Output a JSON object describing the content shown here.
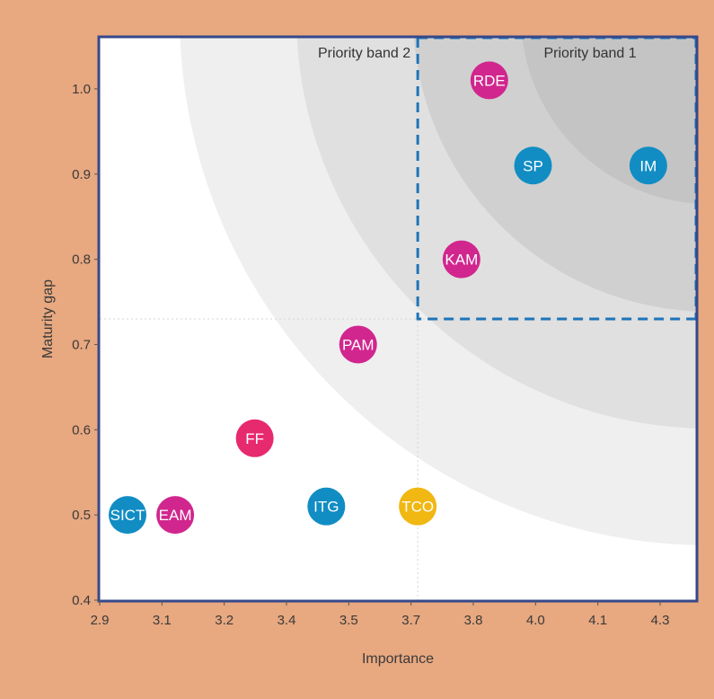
{
  "chart_data": {
    "type": "scatter",
    "xlabel": "Importance",
    "ylabel": "Maturity gap",
    "x_ticks": [
      "2.9",
      "3.1",
      "3.2",
      "3.4",
      "3.5",
      "3.7",
      "3.8",
      "4.0",
      "4.1",
      "4.3"
    ],
    "y_ticks": [
      "0.4",
      "0.5",
      "0.6",
      "0.7",
      "0.8",
      "0.9",
      "1.0"
    ],
    "xlim": [
      2.9,
      4.4
    ],
    "ylim": [
      0.4,
      1.06
    ],
    "grid": false,
    "bands": [
      {
        "name": "Priority band 1",
        "x_min": 3.7,
        "y_min": 0.73
      },
      {
        "name": "Priority band 2",
        "x_min": 3.7,
        "y_min": 0.73
      }
    ],
    "points": [
      {
        "label": "RDE",
        "x": 3.88,
        "y": 1.01,
        "color": "#d1268e"
      },
      {
        "label": "SP",
        "x": 3.99,
        "y": 0.91,
        "color": "#118dc4"
      },
      {
        "label": "IM",
        "x": 4.28,
        "y": 0.91,
        "color": "#118dc4"
      },
      {
        "label": "KAM",
        "x": 3.81,
        "y": 0.8,
        "color": "#d1268e"
      },
      {
        "label": "PAM",
        "x": 3.55,
        "y": 0.7,
        "color": "#d1268e"
      },
      {
        "label": "FF",
        "x": 3.29,
        "y": 0.59,
        "color": "#e72a6e"
      },
      {
        "label": "ITG",
        "x": 3.47,
        "y": 0.51,
        "color": "#118dc4"
      },
      {
        "label": "TCO",
        "x": 3.7,
        "y": 0.51,
        "color": "#f1b712"
      },
      {
        "label": "SICT",
        "x": 2.97,
        "y": 0.5,
        "color": "#118dc4"
      },
      {
        "label": "EAM",
        "x": 3.09,
        "y": 0.5,
        "color": "#d1268e"
      }
    ],
    "colors": {
      "background": "#e8a880",
      "plot_background": "#ffffff",
      "band_line": "#1e74b8",
      "frame": "#35488a",
      "shade_light": "#efefef",
      "shade_mid": "#e0e0e0",
      "shade_dark": "#d0d0d0",
      "shade_darkest": "#c4c4c4"
    }
  }
}
